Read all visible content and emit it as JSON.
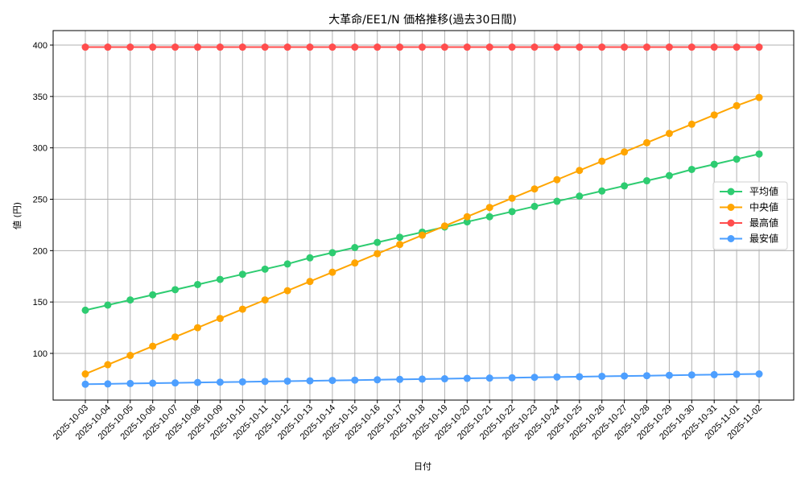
{
  "chart_data": {
    "type": "line",
    "title": "大革命/EE1/N 価格推移(過去30日間)",
    "xlabel": "日付",
    "ylabel": "値 (円)",
    "ylim": [
      55,
      413
    ],
    "yticks": [
      100,
      150,
      200,
      250,
      300,
      350,
      400
    ],
    "grid": true,
    "legend_position": "center right",
    "categories": [
      "2025-10-03",
      "2025-10-04",
      "2025-10-05",
      "2025-10-06",
      "2025-10-07",
      "2025-10-08",
      "2025-10-09",
      "2025-10-10",
      "2025-10-11",
      "2025-10-12",
      "2025-10-13",
      "2025-10-14",
      "2025-10-15",
      "2025-10-16",
      "2025-10-17",
      "2025-10-18",
      "2025-10-19",
      "2025-10-20",
      "2025-10-21",
      "2025-10-22",
      "2025-10-23",
      "2025-10-24",
      "2025-10-25",
      "2025-10-26",
      "2025-10-27",
      "2025-10-28",
      "2025-10-29",
      "2025-10-30",
      "2025-10-31",
      "2025-11-01",
      "2025-11-02"
    ],
    "series": [
      {
        "name": "平均値",
        "color": "#2ecc71",
        "values": [
          142,
          147,
          152,
          157,
          162,
          167,
          172,
          177,
          182,
          187,
          193,
          198,
          203,
          208,
          213,
          218,
          223,
          228,
          233,
          238,
          243,
          248,
          253,
          258,
          263,
          268,
          273,
          279,
          284,
          289,
          294
        ]
      },
      {
        "name": "中央値",
        "color": "#ffa500",
        "values": [
          80,
          89,
          98,
          107,
          116,
          125,
          134,
          143,
          152,
          161,
          170,
          179,
          188,
          197,
          206,
          215,
          224,
          233,
          242,
          251,
          260,
          269,
          278,
          287,
          296,
          305,
          314,
          323,
          332,
          341,
          349
        ]
      },
      {
        "name": "最高値",
        "color": "#ff4d4d",
        "values": [
          398,
          398,
          398,
          398,
          398,
          398,
          398,
          398,
          398,
          398,
          398,
          398,
          398,
          398,
          398,
          398,
          398,
          398,
          398,
          398,
          398,
          398,
          398,
          398,
          398,
          398,
          398,
          398,
          398,
          398,
          398
        ]
      },
      {
        "name": "最安値",
        "color": "#4d9fff",
        "values": [
          70,
          70.3,
          70.7,
          71,
          71.3,
          71.7,
          72,
          72.3,
          72.7,
          73,
          73.3,
          73.7,
          74,
          74.3,
          74.7,
          75,
          75.3,
          75.7,
          76,
          76.3,
          76.7,
          77,
          77.3,
          77.7,
          78,
          78.3,
          78.7,
          79,
          79.3,
          79.7,
          80
        ]
      }
    ]
  }
}
